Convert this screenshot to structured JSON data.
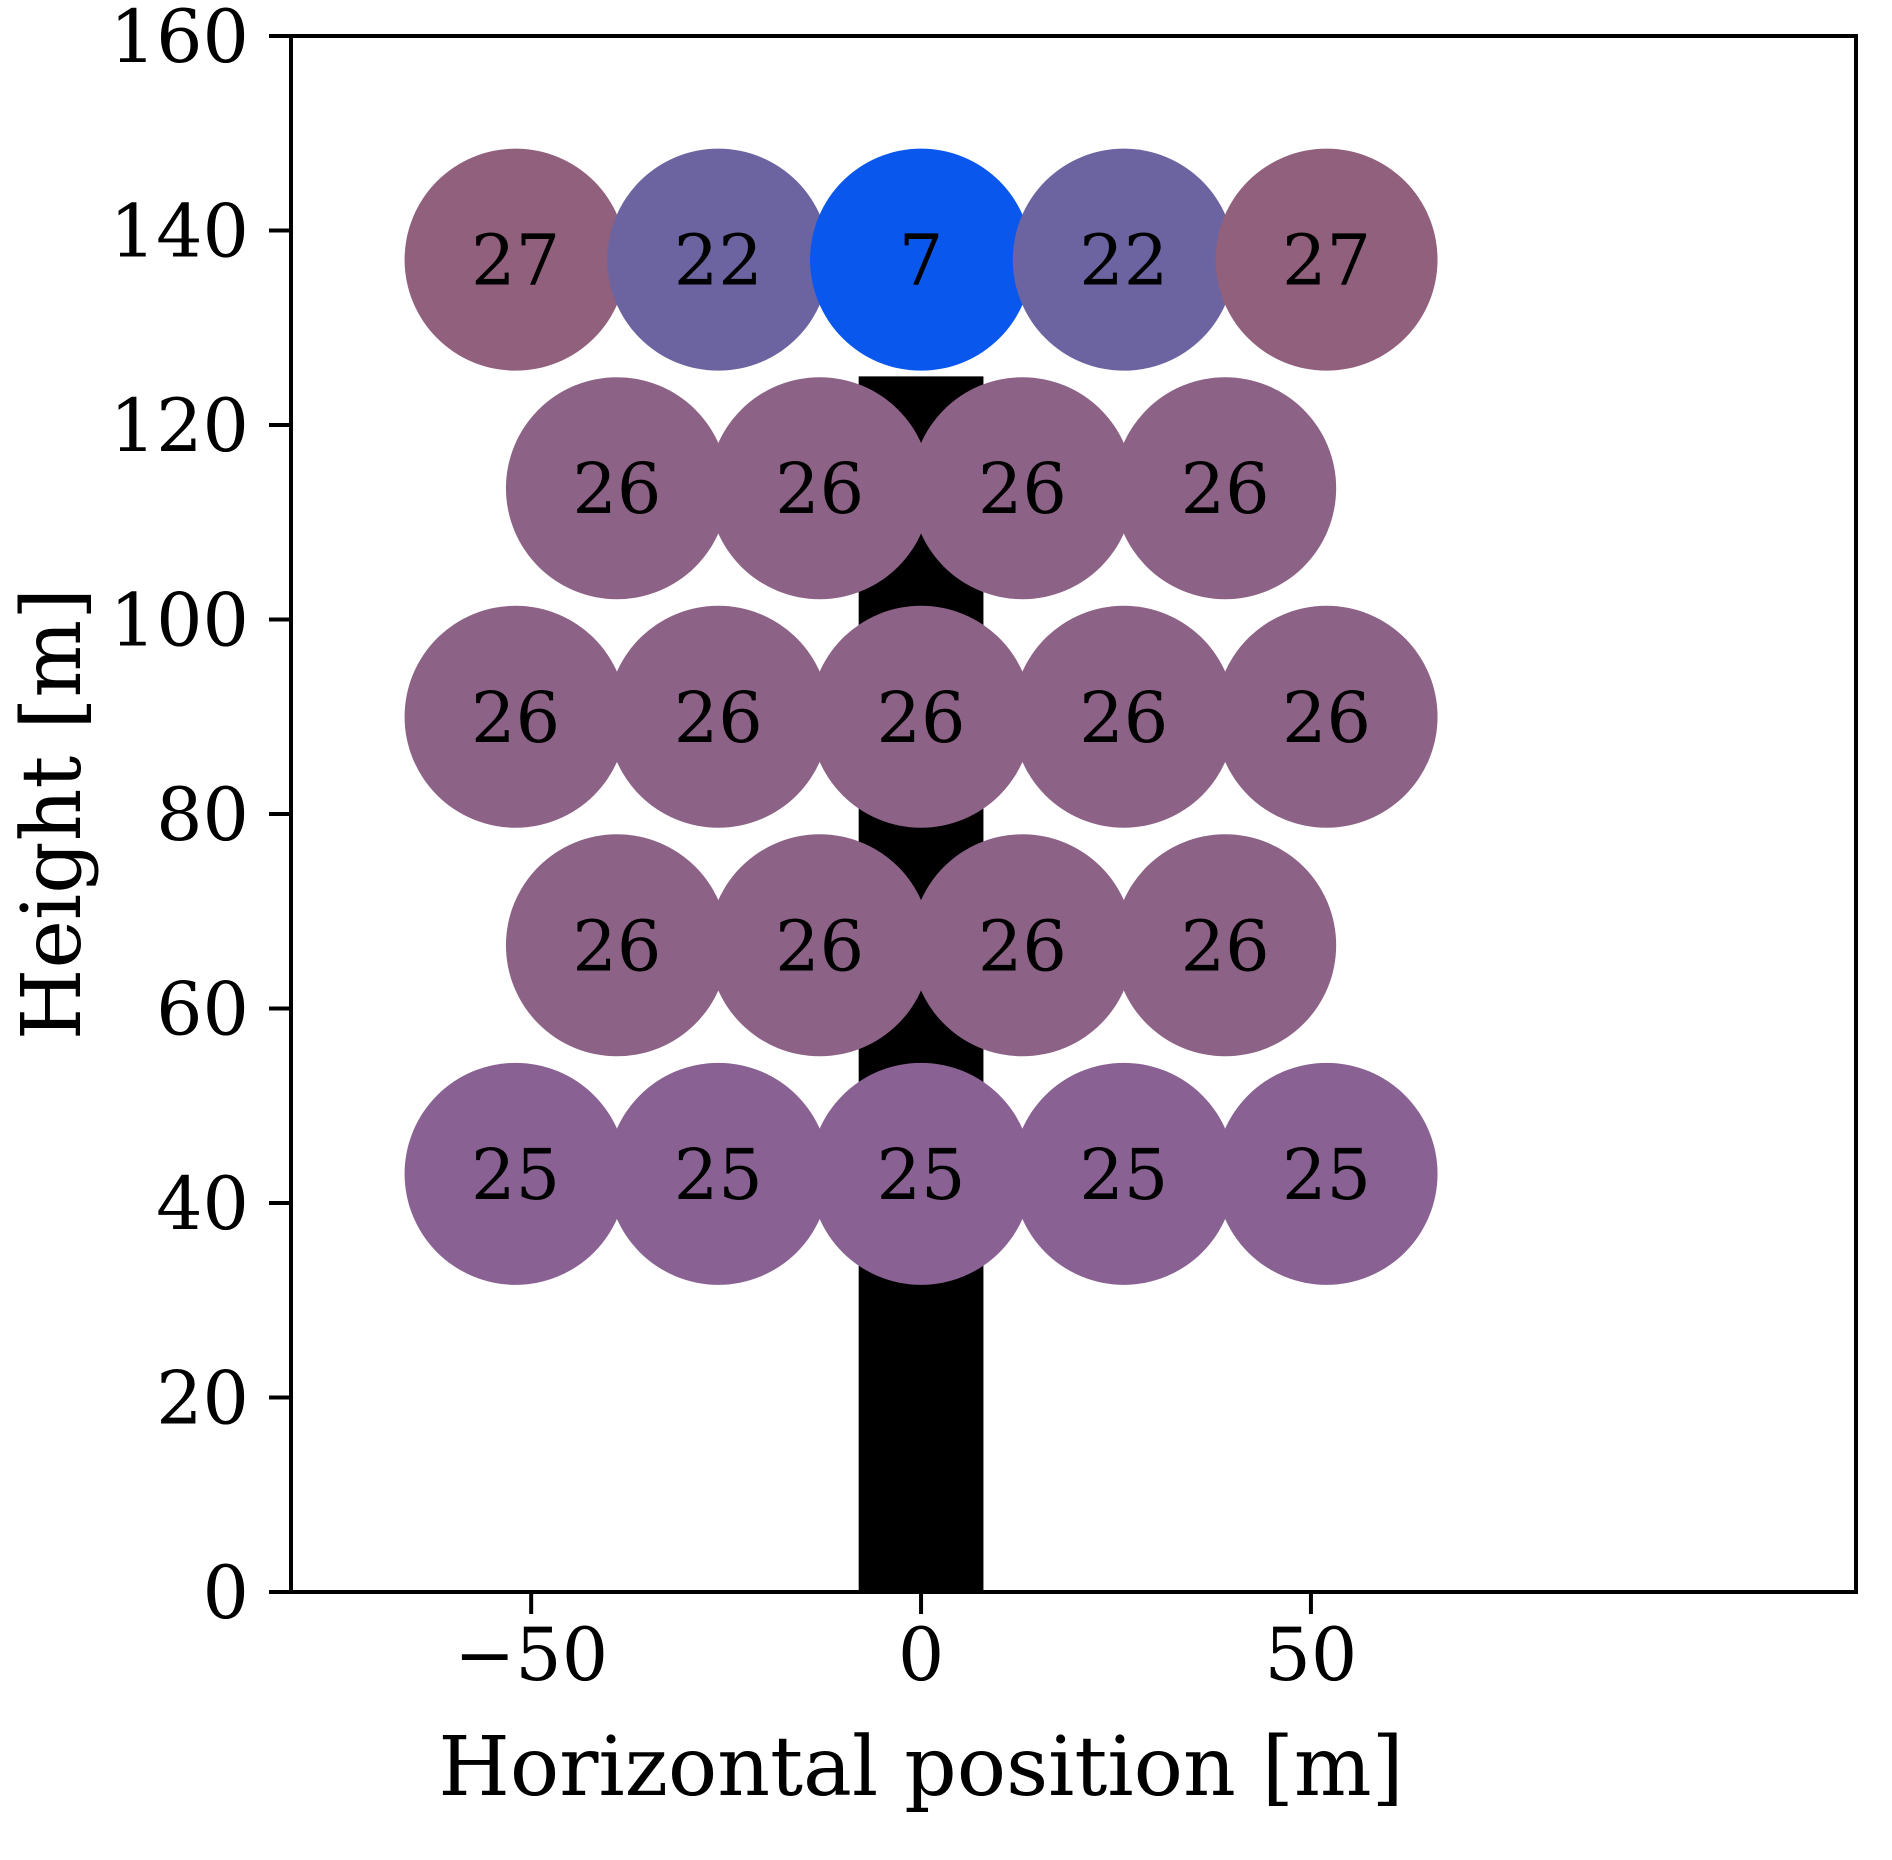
{
  "figure": {
    "background_color": "#ffffff",
    "frame_color": "#000000"
  },
  "chart_data": {
    "type": "scatter",
    "title": "",
    "xlabel": "Horizontal position [m]",
    "ylabel": "Height [m]",
    "xlim": [
      -80.8,
      119.9
    ],
    "ylim": [
      0,
      160
    ],
    "grid": false,
    "legend": false,
    "x_ticks": [
      {
        "value": -50,
        "label": "−50"
      },
      {
        "value": 0,
        "label": "0"
      },
      {
        "value": 50,
        "label": "50"
      }
    ],
    "y_ticks": [
      {
        "value": 0,
        "label": "0"
      },
      {
        "value": 20,
        "label": "20"
      },
      {
        "value": 40,
        "label": "40"
      },
      {
        "value": 60,
        "label": "60"
      },
      {
        "value": 80,
        "label": "80"
      },
      {
        "value": 100,
        "label": "100"
      },
      {
        "value": 120,
        "label": "120"
      },
      {
        "value": 140,
        "label": "140"
      },
      {
        "value": 160,
        "label": "160"
      }
    ],
    "marker_radius_px": 111,
    "value_label_color": "#000000",
    "tower": {
      "x": 0,
      "width_m": 16,
      "base_m": 0,
      "top_m": 125,
      "color": "#000000"
    },
    "points": [
      {
        "x": -52,
        "y": 137,
        "value": 27,
        "color": "#90607c"
      },
      {
        "x": -26,
        "y": 137,
        "value": 22,
        "color": "#6c64a0"
      },
      {
        "x": 0,
        "y": 137,
        "value": 7,
        "color": "#0a57ee"
      },
      {
        "x": 26,
        "y": 137,
        "value": 22,
        "color": "#6c64a0"
      },
      {
        "x": 52,
        "y": 137,
        "value": 27,
        "color": "#90607c"
      },
      {
        "x": -39,
        "y": 113.5,
        "value": 26,
        "color": "#8d6287"
      },
      {
        "x": -13,
        "y": 113.5,
        "value": 26,
        "color": "#8d6287"
      },
      {
        "x": 13,
        "y": 113.5,
        "value": 26,
        "color": "#8d6287"
      },
      {
        "x": 39,
        "y": 113.5,
        "value": 26,
        "color": "#8d6287"
      },
      {
        "x": -52,
        "y": 90,
        "value": 26,
        "color": "#8d6287"
      },
      {
        "x": -26,
        "y": 90,
        "value": 26,
        "color": "#8d6287"
      },
      {
        "x": 0,
        "y": 90,
        "value": 26,
        "color": "#8d6287"
      },
      {
        "x": 26,
        "y": 90,
        "value": 26,
        "color": "#8d6287"
      },
      {
        "x": 52,
        "y": 90,
        "value": 26,
        "color": "#8d6287"
      },
      {
        "x": -39,
        "y": 66.5,
        "value": 26,
        "color": "#8d6287"
      },
      {
        "x": -13,
        "y": 66.5,
        "value": 26,
        "color": "#8d6287"
      },
      {
        "x": 13,
        "y": 66.5,
        "value": 26,
        "color": "#8d6287"
      },
      {
        "x": 39,
        "y": 66.5,
        "value": 26,
        "color": "#8d6287"
      },
      {
        "x": -52,
        "y": 43,
        "value": 25,
        "color": "#896293"
      },
      {
        "x": -26,
        "y": 43,
        "value": 25,
        "color": "#896293"
      },
      {
        "x": 0,
        "y": 43,
        "value": 25,
        "color": "#896293"
      },
      {
        "x": 26,
        "y": 43,
        "value": 25,
        "color": "#896293"
      },
      {
        "x": 52,
        "y": 43,
        "value": 25,
        "color": "#896293"
      }
    ]
  }
}
